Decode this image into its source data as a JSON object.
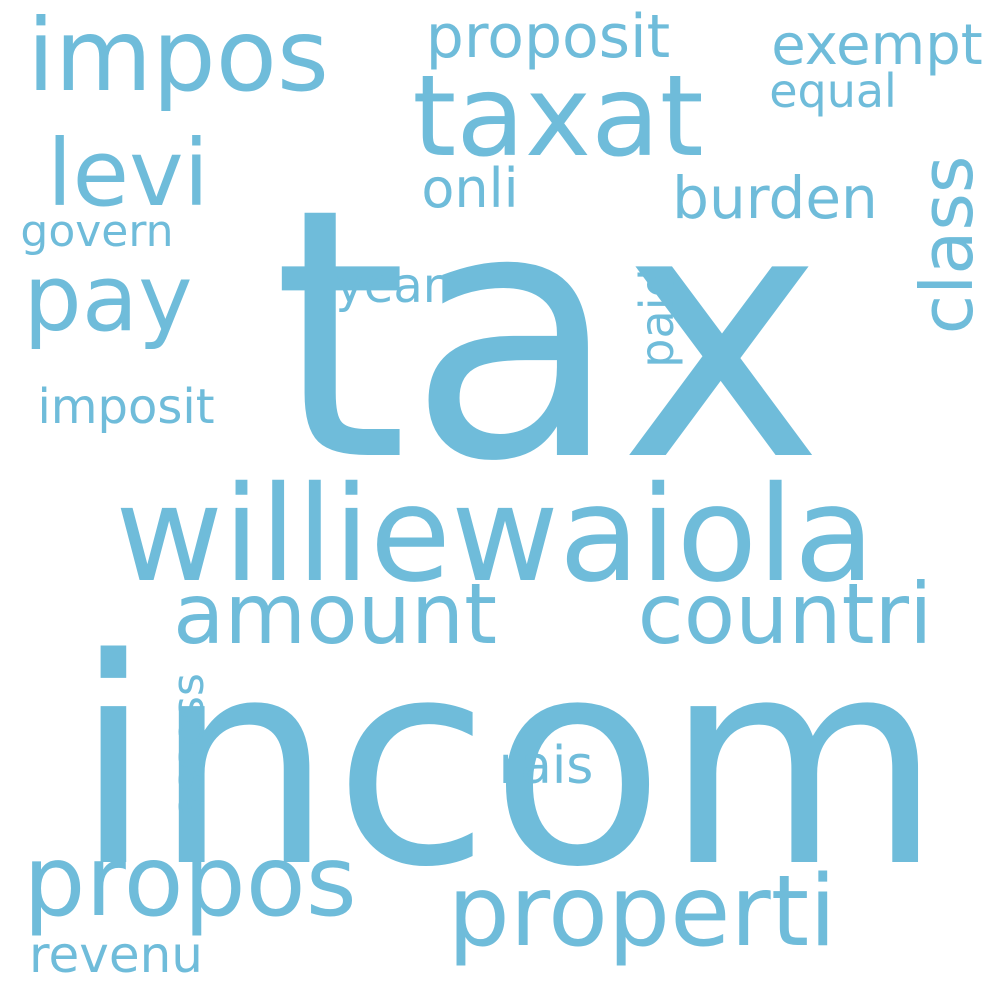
{
  "color": "#6fbcda",
  "background": "#ffffff",
  "words": {
    "tax": "tax",
    "incom": "incom",
    "williewaiola": "williewaiola",
    "taxat": "taxat",
    "impos": "impos",
    "levi": "levi",
    "pay": "pay",
    "propos": "propos",
    "properti": "properti",
    "amount": "amount",
    "countri": "countri",
    "class": "class",
    "proposit": "proposit",
    "exempt": "exempt",
    "equal": "equal",
    "burden": "burden",
    "onli": "onli",
    "govern": "govern",
    "year": "year",
    "paid": "paid",
    "imposit": "imposit",
    "assess": "assess",
    "rais": "rais",
    "revenu": "revenu"
  }
}
